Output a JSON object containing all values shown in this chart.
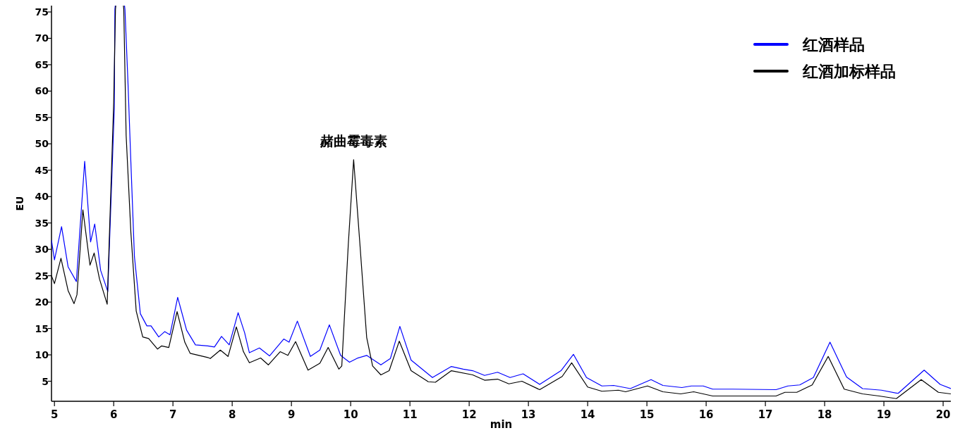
{
  "chart_data": {
    "type": "line",
    "xlabel": "min",
    "ylabel": "EU",
    "xlim": [
      4.95,
      20.13
    ],
    "ylim": [
      1.2,
      76.2
    ],
    "xticks": [
      5,
      6,
      7,
      8,
      9,
      10,
      11,
      12,
      13,
      14,
      15,
      16,
      17,
      18,
      19,
      20
    ],
    "yticks": [
      5,
      10,
      15,
      20,
      25,
      30,
      35,
      40,
      45,
      50,
      55,
      60,
      65,
      70,
      75
    ],
    "grid": false,
    "legend": "top right",
    "marker": "none",
    "line_style": "solid",
    "annotations": [
      {
        "text": "赭曲霉毒素",
        "x": 10.05,
        "y": 47
      }
    ],
    "series": [
      {
        "name": "红酒样品",
        "color": "#0000ff",
        "x": [
          4.95,
          5.0,
          5.12,
          5.23,
          5.37,
          5.51,
          5.61,
          5.68,
          5.78,
          5.9,
          6.01,
          6.02,
          6.1,
          6.19,
          6.24,
          6.29,
          6.35,
          6.45,
          6.56,
          6.63,
          6.76,
          6.86,
          6.95,
          7.08,
          7.23,
          7.38,
          7.59,
          7.7,
          7.82,
          7.95,
          8.1,
          8.21,
          8.29,
          8.46,
          8.63,
          8.87,
          8.96,
          9.1,
          9.32,
          9.48,
          9.64,
          9.83,
          9.98,
          10.12,
          10.27,
          10.51,
          10.67,
          10.83,
          11.02,
          11.38,
          11.7,
          11.9,
          12.06,
          12.26,
          12.48,
          12.69,
          12.91,
          13.19,
          13.55,
          13.76,
          13.98,
          14.24,
          14.44,
          14.72,
          15.07,
          15.27,
          15.59,
          15.75,
          15.95,
          16.11,
          16.45,
          17.18,
          17.38,
          17.58,
          17.81,
          18.09,
          18.37,
          18.64,
          18.96,
          19.24,
          19.68,
          19.95,
          20.13
        ],
        "values": [
          31.7,
          28.0,
          34.3,
          26.7,
          23.9,
          46.7,
          31.4,
          34.8,
          26.0,
          22.0,
          56.7,
          75.5,
          null,
          75.5,
          61.9,
          46.5,
          28.6,
          17.8,
          15.5,
          15.5,
          13.4,
          14.4,
          13.8,
          20.9,
          14.7,
          11.9,
          11.7,
          11.5,
          13.5,
          11.9,
          18.0,
          14.2,
          10.4,
          11.3,
          9.8,
          13.0,
          12.4,
          16.4,
          9.7,
          10.9,
          15.7,
          9.9,
          8.6,
          9.4,
          9.9,
          8.1,
          9.3,
          15.4,
          9.0,
          5.7,
          7.8,
          7.3,
          7.0,
          6.1,
          6.7,
          5.7,
          6.4,
          4.4,
          7.0,
          10.1,
          5.7,
          4.1,
          4.2,
          3.6,
          5.3,
          4.2,
          3.8,
          4.1,
          4.1,
          3.5,
          3.5,
          3.4,
          4.1,
          4.3,
          5.7,
          12.4,
          5.8,
          3.6,
          3.3,
          2.7,
          7.1,
          4.4,
          3.6
        ]
      },
      {
        "name": "红酒加标样品",
        "color": "#000000",
        "x": [
          4.95,
          5.0,
          5.11,
          5.23,
          5.33,
          5.38,
          5.48,
          5.6,
          5.67,
          5.76,
          5.89,
          6.0,
          6.03,
          6.1,
          6.17,
          6.21,
          6.29,
          6.38,
          6.49,
          6.59,
          6.74,
          6.81,
          6.93,
          7.07,
          7.2,
          7.29,
          7.59,
          7.63,
          7.8,
          7.93,
          8.07,
          8.19,
          8.29,
          8.48,
          8.61,
          8.81,
          8.94,
          9.07,
          9.28,
          9.48,
          9.62,
          9.8,
          9.85,
          9.96,
          10.05,
          10.15,
          10.27,
          10.37,
          10.51,
          10.65,
          10.82,
          11.02,
          11.31,
          11.43,
          11.7,
          12.06,
          12.26,
          12.48,
          12.67,
          12.89,
          13.19,
          13.57,
          13.73,
          14.0,
          14.24,
          14.52,
          14.64,
          15.01,
          15.27,
          15.57,
          15.79,
          16.11,
          16.45,
          17.18,
          17.33,
          17.53,
          17.79,
          18.06,
          18.33,
          18.64,
          18.92,
          19.21,
          19.63,
          19.92,
          20.13
        ],
        "values": [
          25.0,
          23.5,
          28.3,
          22.2,
          19.7,
          21.4,
          37.5,
          27.0,
          29.3,
          24.4,
          19.6,
          57.8,
          75.5,
          null,
          75.5,
          51.6,
          33.2,
          18.3,
          13.4,
          13.1,
          11.1,
          11.7,
          11.4,
          18.2,
          12.4,
          10.3,
          9.5,
          9.3,
          10.9,
          9.7,
          15.3,
          10.6,
          8.5,
          9.4,
          8.1,
          10.6,
          9.9,
          12.5,
          7.1,
          8.4,
          11.4,
          7.3,
          7.9,
          31.0,
          47.0,
          31.9,
          13.3,
          7.9,
          6.2,
          7.0,
          12.6,
          7.0,
          4.9,
          4.8,
          7.0,
          6.2,
          5.2,
          5.4,
          4.5,
          5.0,
          3.4,
          5.9,
          8.5,
          3.9,
          3.1,
          3.3,
          3.0,
          4.1,
          3.0,
          2.6,
          3.0,
          2.2,
          2.2,
          2.2,
          2.9,
          2.9,
          4.3,
          9.7,
          3.5,
          2.6,
          2.2,
          1.7,
          5.3,
          2.9,
          2.6
        ]
      }
    ]
  }
}
